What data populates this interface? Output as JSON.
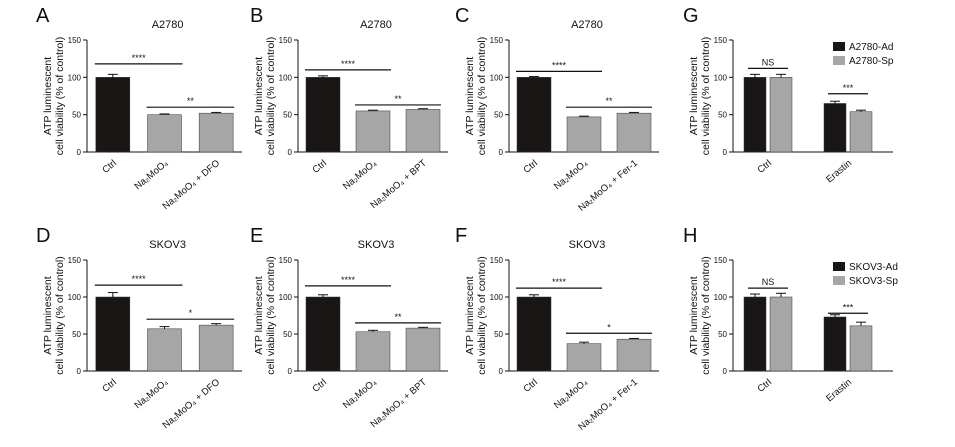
{
  "figure": {
    "y_axis_label_line1": "ATP luminescent",
    "y_axis_label_line2": "cell viability (% of control)"
  },
  "chart_data": [
    {
      "panel": "A",
      "type": "bar",
      "title": "A2780",
      "categories": [
        "Ctrl",
        "Na₂MoO₄",
        "Na₂MoO₄ + DFO"
      ],
      "values": [
        100,
        50,
        52
      ],
      "errors": [
        4,
        1,
        1
      ],
      "colors": [
        "#1a1616",
        "#a6a6a6",
        "#a6a6a6"
      ],
      "ylim": [
        0,
        150
      ],
      "yticks": [
        0,
        50,
        100,
        150
      ],
      "significance": [
        {
          "from": 0,
          "to": 1,
          "label": "****",
          "y": 118
        },
        {
          "from": 1,
          "to": 2,
          "label": "**",
          "y": 60
        }
      ]
    },
    {
      "panel": "B",
      "type": "bar",
      "title": "A2780",
      "categories": [
        "Ctrl",
        "Na₂MoO₄",
        "Na₂MoO₄ + BPT"
      ],
      "values": [
        100,
        55,
        57
      ],
      "errors": [
        2,
        1,
        1
      ],
      "colors": [
        "#1a1616",
        "#a6a6a6",
        "#a6a6a6"
      ],
      "ylim": [
        0,
        150
      ],
      "yticks": [
        0,
        50,
        100,
        150
      ],
      "significance": [
        {
          "from": 0,
          "to": 1,
          "label": "****",
          "y": 110
        },
        {
          "from": 1,
          "to": 2,
          "label": "**",
          "y": 63
        }
      ]
    },
    {
      "panel": "C",
      "type": "bar",
      "title": "A2780",
      "categories": [
        "Ctrl",
        "Na₂MoO₄",
        "Na₂MoO₄ + Fer-1"
      ],
      "values": [
        100,
        47,
        52
      ],
      "errors": [
        1,
        1,
        1
      ],
      "colors": [
        "#1a1616",
        "#a6a6a6",
        "#a6a6a6"
      ],
      "ylim": [
        0,
        150
      ],
      "yticks": [
        0,
        50,
        100,
        150
      ],
      "significance": [
        {
          "from": 0,
          "to": 1,
          "label": "****",
          "y": 108
        },
        {
          "from": 1,
          "to": 2,
          "label": "**",
          "y": 60
        }
      ]
    },
    {
      "panel": "G",
      "type": "bar",
      "categories": [
        "Ctrl",
        "Erastin"
      ],
      "series": [
        {
          "name": "A2780-Ad",
          "values": [
            100,
            65
          ],
          "errors": [
            4,
            3
          ],
          "color": "#1a1616"
        },
        {
          "name": "A2780-Sp",
          "values": [
            100,
            54
          ],
          "errors": [
            4,
            2
          ],
          "color": "#a6a6a6"
        }
      ],
      "ylim": [
        0,
        150
      ],
      "yticks": [
        0,
        50,
        100,
        150
      ],
      "legend": "top-right",
      "significance": [
        {
          "group": 0,
          "label": "NS",
          "y": 112
        },
        {
          "group": 1,
          "label": "***",
          "y": 78
        }
      ]
    },
    {
      "panel": "D",
      "type": "bar",
      "title": "SKOV3",
      "categories": [
        "Ctrl",
        "Na₂MoO₄",
        "Na₂MoO₄ + DFO"
      ],
      "values": [
        100,
        57,
        62
      ],
      "errors": [
        6,
        3,
        2
      ],
      "colors": [
        "#1a1616",
        "#a6a6a6",
        "#a6a6a6"
      ],
      "ylim": [
        0,
        150
      ],
      "yticks": [
        0,
        50,
        100,
        150
      ],
      "significance": [
        {
          "from": 0,
          "to": 1,
          "label": "****",
          "y": 116
        },
        {
          "from": 1,
          "to": 2,
          "label": "*",
          "y": 70
        }
      ]
    },
    {
      "panel": "E",
      "type": "bar",
      "title": "SKOV3",
      "categories": [
        "Ctrl",
        "Na₂MoO₄",
        "Na₂MoO₄ + BPT"
      ],
      "values": [
        100,
        53,
        58
      ],
      "errors": [
        3,
        2,
        1
      ],
      "colors": [
        "#1a1616",
        "#a6a6a6",
        "#a6a6a6"
      ],
      "ylim": [
        0,
        150
      ],
      "yticks": [
        0,
        50,
        100,
        150
      ],
      "significance": [
        {
          "from": 0,
          "to": 1,
          "label": "****",
          "y": 115
        },
        {
          "from": 1,
          "to": 2,
          "label": "**",
          "y": 65
        }
      ]
    },
    {
      "panel": "F",
      "type": "bar",
      "title": "SKOV3",
      "categories": [
        "Ctrl",
        "Na₂MoO₄",
        "Na₂MoO₄ + Fer-1"
      ],
      "values": [
        100,
        37,
        43
      ],
      "errors": [
        3,
        2,
        1
      ],
      "colors": [
        "#1a1616",
        "#a6a6a6",
        "#a6a6a6"
      ],
      "ylim": [
        0,
        150
      ],
      "yticks": [
        0,
        50,
        100,
        150
      ],
      "significance": [
        {
          "from": 0,
          "to": 1,
          "label": "****",
          "y": 112
        },
        {
          "from": 1,
          "to": 2,
          "label": "*",
          "y": 51
        }
      ]
    },
    {
      "panel": "H",
      "type": "bar",
      "categories": [
        "Ctrl",
        "Erastin"
      ],
      "series": [
        {
          "name": "SKOV3-Ad",
          "values": [
            100,
            73
          ],
          "errors": [
            4,
            3
          ],
          "color": "#1a1616"
        },
        {
          "name": "SKOV3-Sp",
          "values": [
            100,
            61
          ],
          "errors": [
            5,
            5
          ],
          "color": "#a6a6a6"
        }
      ],
      "ylim": [
        0,
        150
      ],
      "yticks": [
        0,
        50,
        100,
        150
      ],
      "legend": "top-right",
      "significance": [
        {
          "group": 0,
          "label": "NS",
          "y": 112
        },
        {
          "group": 1,
          "label": "***",
          "y": 78
        }
      ]
    }
  ]
}
